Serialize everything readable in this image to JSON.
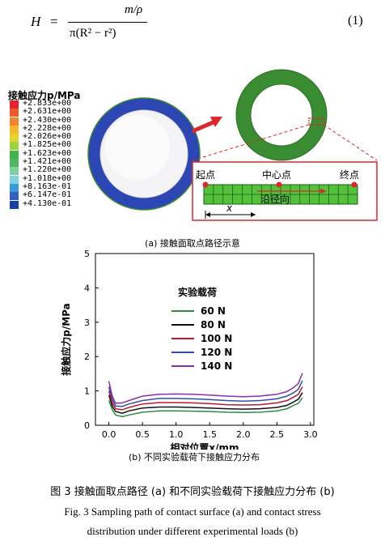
{
  "equation": {
    "lhs": "H",
    "equals": "=",
    "numerator": "m/ρ",
    "denominator": "π(R² − r²)",
    "tag": "(1)"
  },
  "legend": {
    "title": "接触应力p/MPa",
    "items": [
      {
        "label": "+2.833e+00",
        "color": "#e8232a"
      },
      {
        "label": "+2.631e+00",
        "color": "#ee5a2a"
      },
      {
        "label": "+2.430e+00",
        "color": "#f0862b"
      },
      {
        "label": "+2.228e+00",
        "color": "#f2b72c"
      },
      {
        "label": "+2.026e+00",
        "color": "#e6d42e"
      },
      {
        "label": "+1.825e+00",
        "color": "#9fd33a"
      },
      {
        "label": "+1.623e+00",
        "color": "#3fb54a"
      },
      {
        "label": "+1.421e+00",
        "color": "#4db85f"
      },
      {
        "label": "+1.220e+00",
        "color": "#7fcfa0"
      },
      {
        "label": "+1.018e+00",
        "color": "#7fd0e0"
      },
      {
        "label": "+8.163e-01",
        "color": "#3a9ad8"
      },
      {
        "label": "+6.147e-01",
        "color": "#3260c0"
      },
      {
        "label": "+4.130e-01",
        "color": "#1d3fa8"
      }
    ]
  },
  "path_diagram": {
    "start_label": "起点",
    "center_label": "中心点",
    "end_label": "终点",
    "direction_label": "沿径向",
    "distance_label": "x"
  },
  "caption_a": "(a) 接触面取点路径示意",
  "caption_b": "(b) 不同实验载荷下接触应力分布",
  "figure_title": "图 3  接触面取点路径 (a) 和不同实验载荷下接触应力分布 (b)",
  "figure_title_en_line1": "Fig. 3   Sampling path of contact surface (a) and contact stress",
  "figure_title_en_line2": "distribution under different experimental loads (b)",
  "chart_data": {
    "type": "line",
    "xlabel": "相对位置x/mm",
    "ylabel": "接触应力p/MPa",
    "xlim": [
      -0.2,
      3.05
    ],
    "ylim": [
      0,
      5
    ],
    "xticks": [
      "0.0",
      "0.5",
      "1.0",
      "1.5",
      "2.0",
      "2.5",
      "3.0"
    ],
    "yticks": [
      "0",
      "1",
      "2",
      "3",
      "4",
      "5"
    ],
    "legend_title": "实验载荷",
    "legend_position": "upper-center",
    "x": [
      0.0,
      0.05,
      0.1,
      0.2,
      0.3,
      0.5,
      0.75,
      1.0,
      1.25,
      1.5,
      1.75,
      2.0,
      2.25,
      2.5,
      2.65,
      2.75,
      2.82,
      2.88
    ],
    "series": [
      {
        "name": "60 N",
        "color": "#2e8b3e",
        "values": [
          0.72,
          0.45,
          0.3,
          0.25,
          0.3,
          0.38,
          0.42,
          0.42,
          0.41,
          0.4,
          0.38,
          0.37,
          0.38,
          0.42,
          0.48,
          0.58,
          0.64,
          0.8
        ]
      },
      {
        "name": "80 N",
        "color": "#111111",
        "values": [
          0.88,
          0.55,
          0.4,
          0.35,
          0.42,
          0.5,
          0.53,
          0.53,
          0.52,
          0.5,
          0.48,
          0.47,
          0.48,
          0.52,
          0.58,
          0.68,
          0.76,
          0.95
        ]
      },
      {
        "name": "100 N",
        "color": "#c0182a",
        "values": [
          1.0,
          0.65,
          0.48,
          0.45,
          0.52,
          0.62,
          0.66,
          0.66,
          0.65,
          0.63,
          0.6,
          0.59,
          0.6,
          0.65,
          0.72,
          0.82,
          0.9,
          1.12
        ]
      },
      {
        "name": "120 N",
        "color": "#2f4fa8",
        "values": [
          1.12,
          0.75,
          0.56,
          0.55,
          0.62,
          0.72,
          0.78,
          0.78,
          0.77,
          0.75,
          0.72,
          0.7,
          0.72,
          0.77,
          0.85,
          0.95,
          1.05,
          1.3
        ]
      },
      {
        "name": "140 N",
        "color": "#8a2fa8",
        "values": [
          1.28,
          0.85,
          0.64,
          0.65,
          0.72,
          0.85,
          0.9,
          0.91,
          0.9,
          0.88,
          0.85,
          0.83,
          0.85,
          0.9,
          0.98,
          1.1,
          1.22,
          1.52
        ]
      }
    ]
  }
}
